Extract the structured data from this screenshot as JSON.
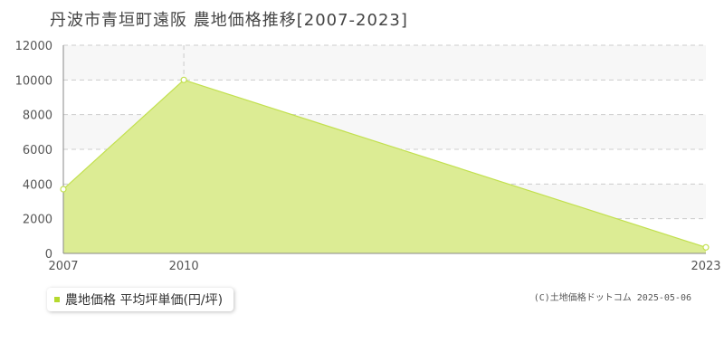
{
  "colors": {
    "fill": "#dcec94",
    "line": "#c2e04f",
    "marker_fill": "#ffffff",
    "legend_swatch": "#b5d92e",
    "grid": "#cccccc",
    "band": "#f7f7f7"
  },
  "chart_data": {
    "type": "area",
    "title": "丹波市青垣町遠阪 農地価格推移[2007-2023]",
    "x": [
      2007,
      2010,
      2023
    ],
    "series": [
      {
        "name": "農地価格 平均坪単価(円/坪)",
        "values": [
          3700,
          10000,
          350
        ]
      }
    ],
    "x_ticks": [
      "2007",
      "2010",
      "2023"
    ],
    "y_ticks": [
      "0",
      "2000",
      "4000",
      "6000",
      "8000",
      "10000",
      "12000"
    ],
    "xlim": [
      2007,
      2023
    ],
    "ylim": [
      0,
      12000
    ],
    "grid": true,
    "legend_position": "bottom-left"
  },
  "legend": {
    "label": "農地価格 平均坪単価(円/坪)"
  },
  "credit": "(C)土地価格ドットコム 2025-05-06"
}
